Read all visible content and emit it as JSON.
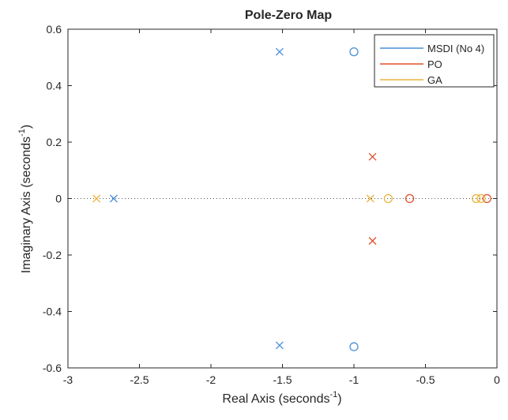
{
  "chart_data": {
    "type": "scatter",
    "title": "Pole-Zero Map",
    "xlabel": "Real Axis (seconds",
    "ylabel": "Imaginary Axis (seconds",
    "label_superscript": "-1",
    "label_close": ")",
    "xlim": [
      -3,
      0
    ],
    "ylim": [
      -0.6,
      0.6
    ],
    "xticks": [
      -3,
      -2.5,
      -2,
      -1.5,
      -1,
      -0.5,
      0
    ],
    "xtick_labels": [
      "-3",
      "-2.5",
      "-2",
      "-1.5",
      "-1",
      "-0.5",
      "0"
    ],
    "yticks": [
      -0.6,
      -0.4,
      -0.2,
      0,
      0.2,
      0.4,
      0.6
    ],
    "ytick_labels": [
      "-0.6",
      "-0.4",
      "-0.2",
      "0",
      "0.2",
      "0.4",
      "0.6"
    ],
    "grid": false,
    "legend_position": "top-right",
    "series": [
      {
        "name": "MSDI (No 4)",
        "color": "#4a90d9",
        "poles": [
          [
            -1.52,
            0.52
          ],
          [
            -1.52,
            -0.52
          ],
          [
            -2.68,
            0
          ]
        ],
        "zeros": [
          [
            -1.0,
            0.52
          ],
          [
            -1.0,
            -0.525
          ]
        ]
      },
      {
        "name": "PO",
        "color": "#e0502e",
        "poles": [
          [
            -0.87,
            0.148
          ],
          [
            -0.87,
            -0.15
          ]
        ],
        "zeros": [
          [
            -0.61,
            0
          ],
          [
            -0.07,
            0
          ]
        ]
      },
      {
        "name": "GA",
        "color": "#eab33b",
        "poles": [
          [
            -2.8,
            0
          ],
          [
            -0.885,
            0
          ]
        ],
        "zeros": [
          [
            -0.76,
            0
          ],
          [
            -0.145,
            0
          ],
          [
            -0.11,
            0
          ]
        ]
      }
    ]
  }
}
